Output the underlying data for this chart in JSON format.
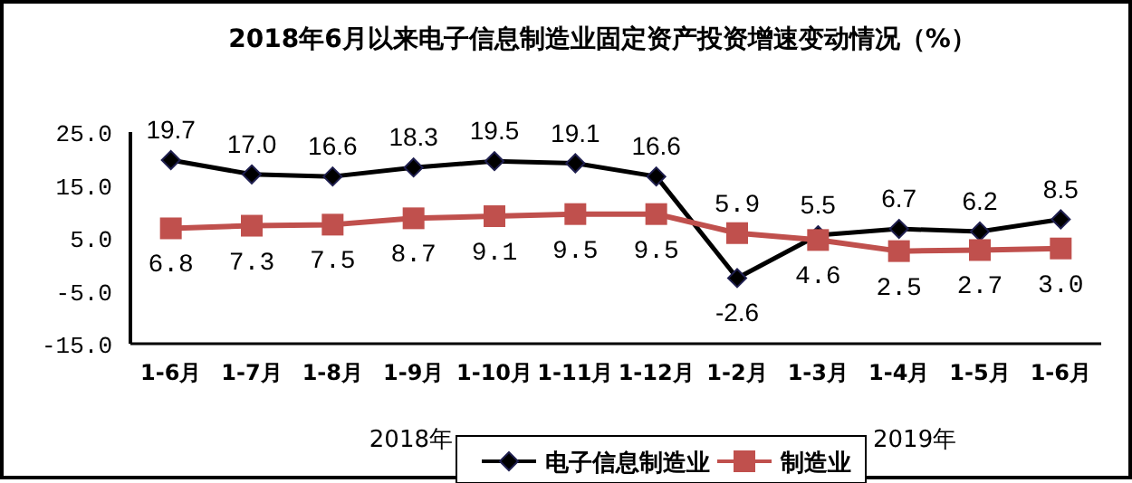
{
  "chart_data": {
    "type": "line",
    "title": "2018年6月以来电子信息制造业固定资产投资增速变动情况（%）",
    "categories": [
      "1-6月",
      "1-7月",
      "1-8月",
      "1-9月",
      "1-10月",
      "1-11月",
      "1-12月",
      "1-2月",
      "1-3月",
      "1-4月",
      "1-5月",
      "1-6月"
    ],
    "series": [
      {
        "name": "电子信息制造业",
        "color": "#000000",
        "marker": "diamond",
        "values": [
          19.7,
          17.0,
          16.6,
          18.3,
          19.5,
          19.1,
          16.6,
          -2.6,
          5.5,
          6.7,
          6.2,
          8.5
        ],
        "value_labels": [
          "19.7",
          "17.0",
          "16.6",
          "18.3",
          "19.5",
          "19.1",
          "16.6",
          "-2.6",
          "5.5",
          "6.7",
          "6.2",
          "8.5"
        ]
      },
      {
        "name": "制造业",
        "color": "#c0504d",
        "marker": "square",
        "values": [
          6.8,
          7.3,
          7.5,
          8.7,
          9.1,
          9.5,
          9.5,
          5.9,
          4.6,
          2.5,
          2.7,
          3.0
        ],
        "value_labels": [
          "6.8",
          "7.3",
          "7.5",
          "8.7",
          "9.1",
          "9.5",
          "9.5",
          "5.9",
          "4.6",
          "2.5",
          "2.7",
          "3.0"
        ]
      }
    ],
    "ylim": [
      -15,
      25
    ],
    "yticks": [
      {
        "value": -15,
        "label": "-15.0"
      },
      {
        "value": -5,
        "label": "-5.0"
      },
      {
        "value": 5,
        "label": "5.0"
      },
      {
        "value": 15,
        "label": "15.0"
      },
      {
        "value": 25,
        "label": "25.0"
      }
    ],
    "grid": false,
    "legend": "bottom",
    "annotations": [
      "2018年",
      "2019年"
    ]
  }
}
